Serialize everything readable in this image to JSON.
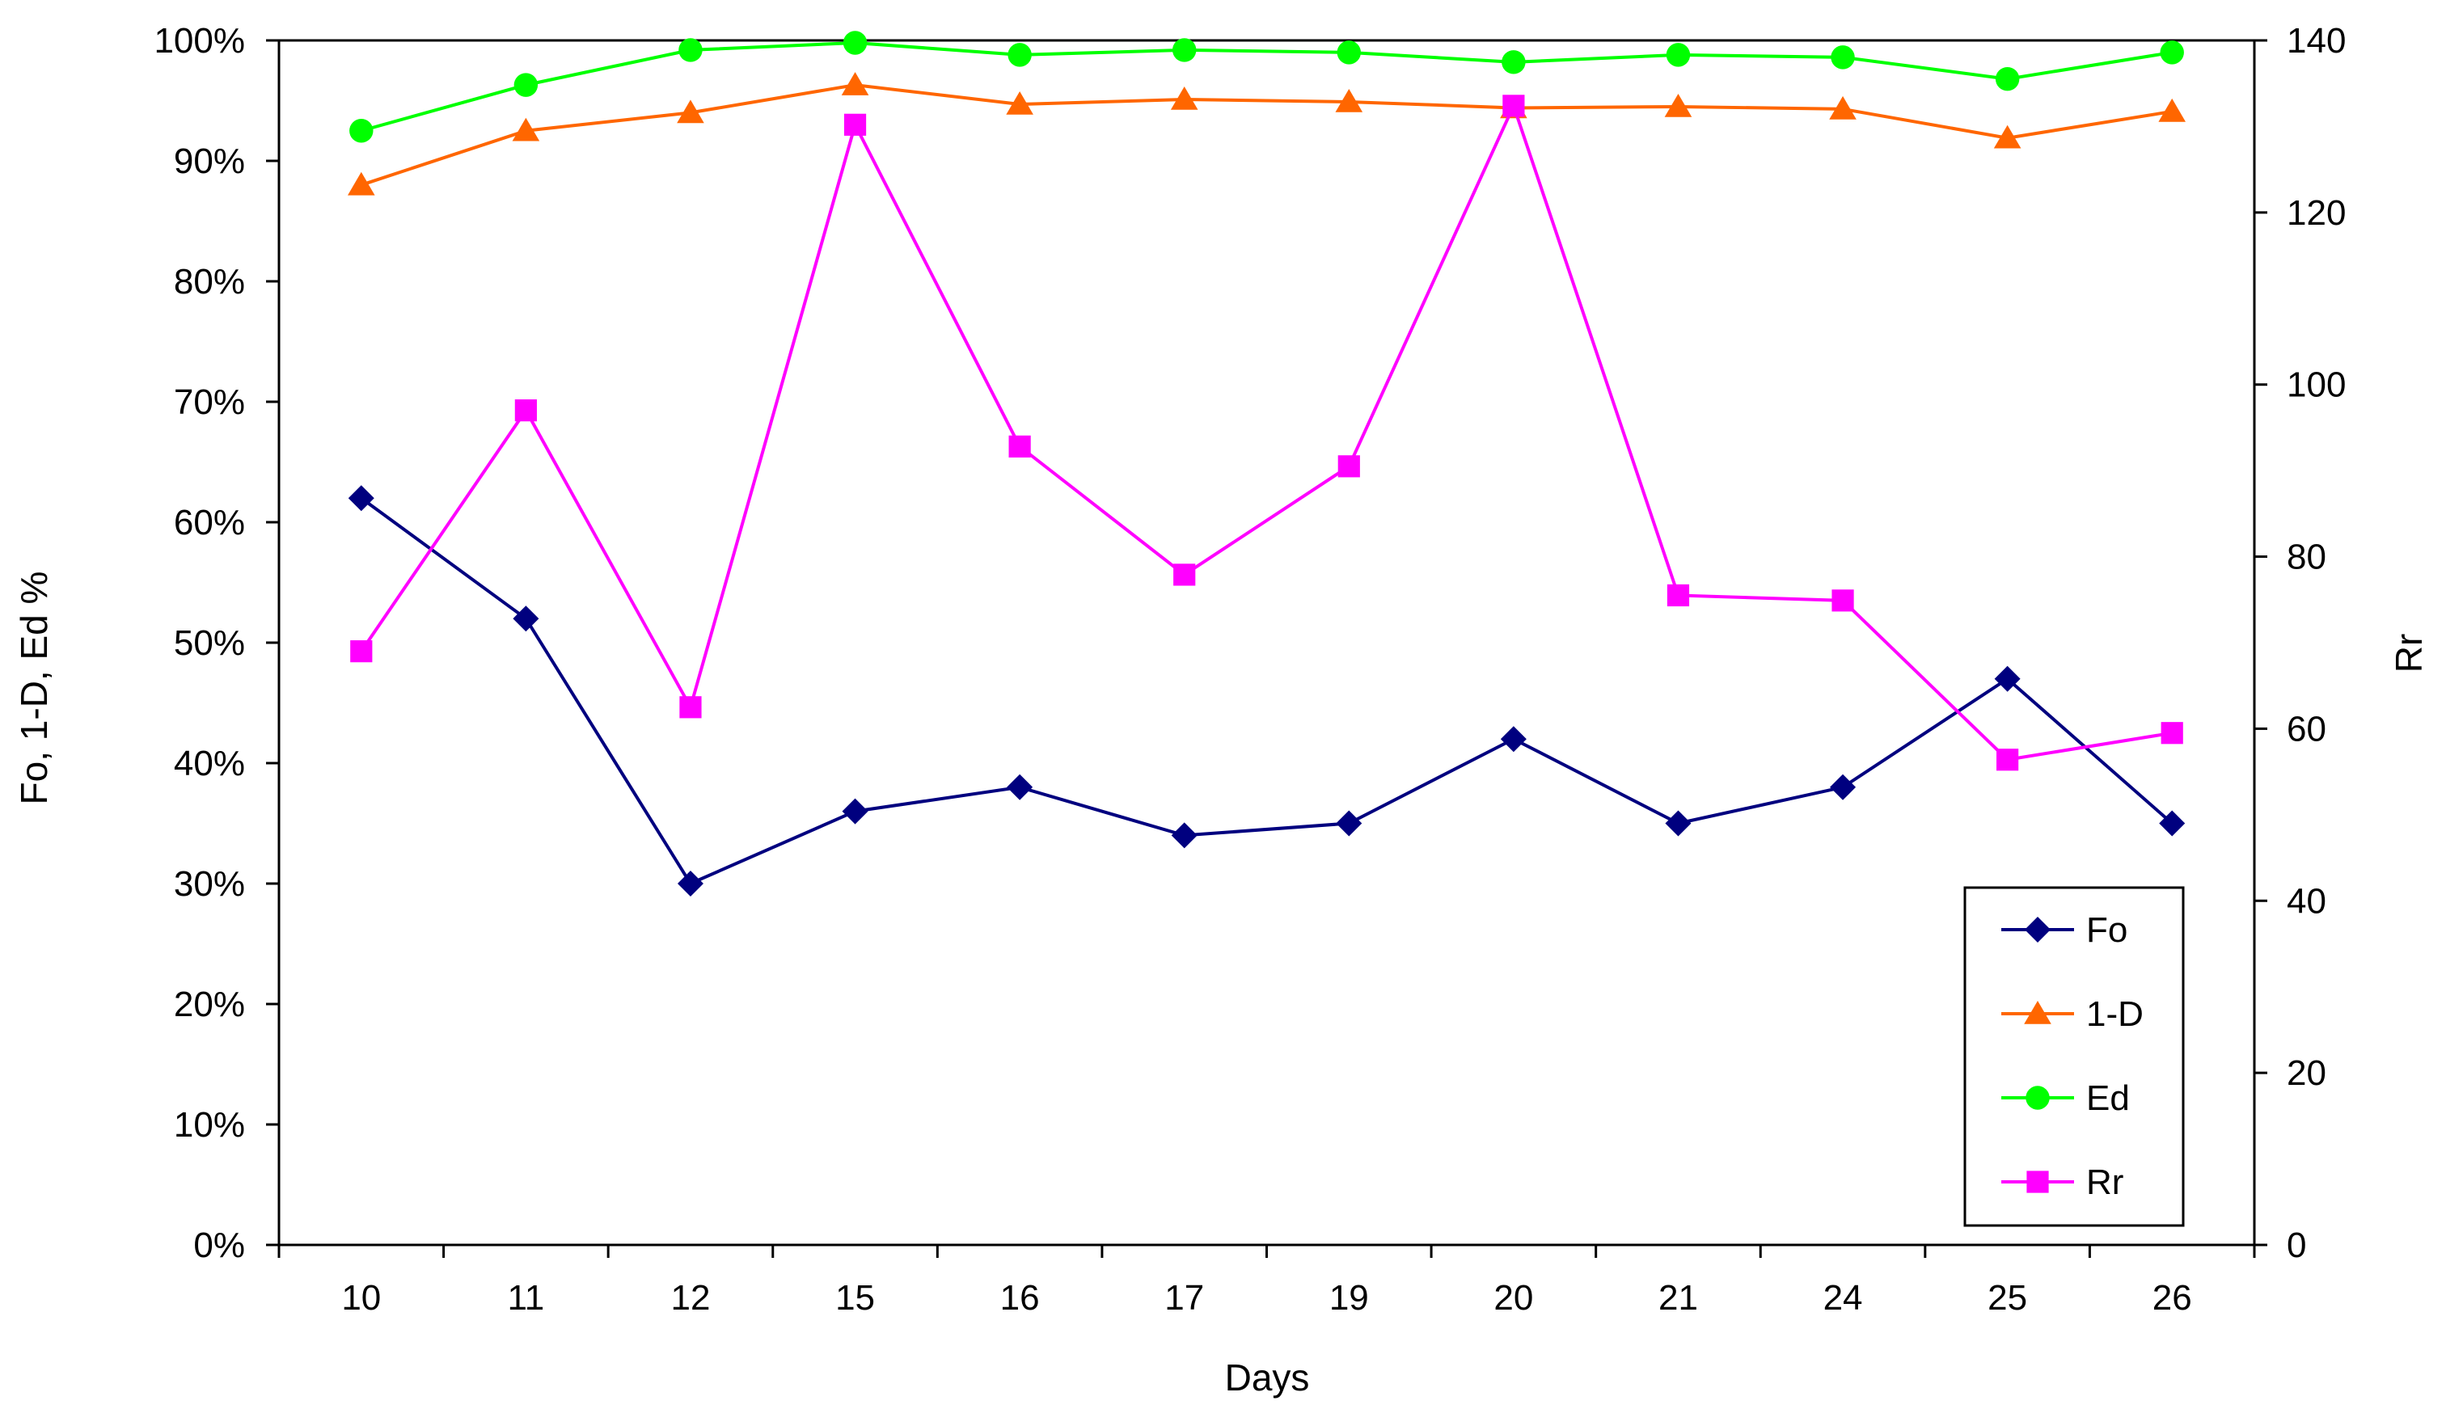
{
  "chart_data": {
    "type": "line",
    "title": "",
    "xlabel": "Days",
    "ylabel_left": "Fo, 1-D, Ed %",
    "ylabel_right": "Rr",
    "categories": [
      "10",
      "11",
      "12",
      "15",
      "16",
      "17",
      "19",
      "20",
      "21",
      "24",
      "25",
      "26"
    ],
    "y_left": {
      "min": 0,
      "max": 100,
      "step": 10,
      "tick_labels": [
        "0%",
        "10%",
        "20%",
        "30%",
        "40%",
        "50%",
        "60%",
        "70%",
        "80%",
        "90%",
        "100%"
      ]
    },
    "y_right": {
      "min": 0,
      "max": 140,
      "step": 20,
      "tick_labels": [
        "0",
        "20",
        "40",
        "60",
        "80",
        "100",
        "120",
        "140"
      ]
    },
    "grid": false,
    "legend_position": "bottom-right",
    "series": [
      {
        "name": "Fo",
        "axis": "left",
        "marker": "diamond",
        "color": "#00007F",
        "values": [
          62,
          52,
          30,
          36,
          38,
          34,
          35,
          42,
          35,
          38,
          47,
          35
        ]
      },
      {
        "name": "1-D",
        "axis": "left",
        "marker": "triangle",
        "color": "#FF6600",
        "values": [
          88,
          92.5,
          94,
          96.3,
          94.7,
          95.1,
          94.9,
          94.4,
          94.5,
          94.3,
          91.9,
          94.1
        ]
      },
      {
        "name": "Ed",
        "axis": "left",
        "marker": "circle",
        "color": "#00FF00",
        "values": [
          92.5,
          96.3,
          99.2,
          99.8,
          98.8,
          99.2,
          99,
          98.2,
          98.8,
          98.6,
          96.8,
          99
        ]
      },
      {
        "name": "Rr",
        "axis": "right",
        "marker": "square",
        "color": "#FF00FF",
        "values": [
          69,
          97,
          62.5,
          130.2,
          92.8,
          77.9,
          90.5,
          132.4,
          75.5,
          74.9,
          56.4,
          59.5
        ]
      }
    ]
  }
}
